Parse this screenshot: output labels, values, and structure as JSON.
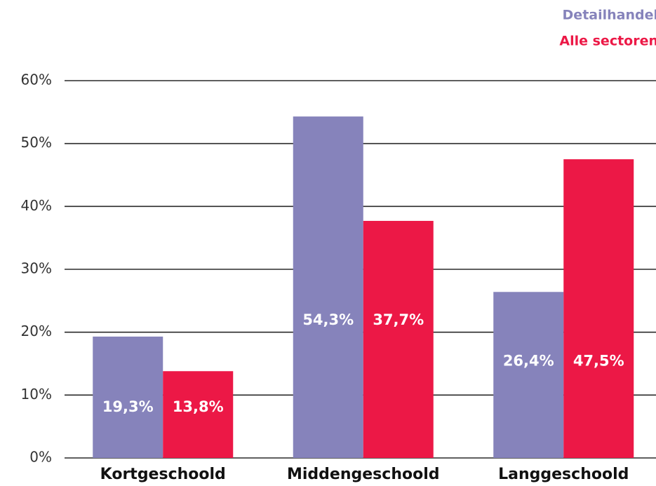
{
  "chart_data": {
    "type": "bar",
    "categories": [
      "Kortgeschoold",
      "Middengeschoold",
      "Langgeschoold"
    ],
    "series": [
      {
        "name": "Detailhandel",
        "color": "#8683bb",
        "values": [
          19.3,
          54.3,
          26.4
        ],
        "value_labels": [
          "19,3%",
          "54,3%",
          "26,4%"
        ]
      },
      {
        "name": "Alle sectoren",
        "color": "#ec1846",
        "values": [
          13.8,
          37.7,
          47.5
        ],
        "value_labels": [
          "13,8%",
          "37,7%",
          "47,5%"
        ]
      }
    ],
    "ylim": [
      0,
      60
    ],
    "yticks": [
      {
        "value": 0,
        "label": "0%"
      },
      {
        "value": 10,
        "label": "10%"
      },
      {
        "value": 20,
        "label": "20%"
      },
      {
        "value": 30,
        "label": "30%"
      },
      {
        "value": 40,
        "label": "40%"
      },
      {
        "value": 50,
        "label": "50%"
      },
      {
        "value": 60,
        "label": "60%"
      }
    ],
    "grid": true,
    "legend": "top-right"
  }
}
